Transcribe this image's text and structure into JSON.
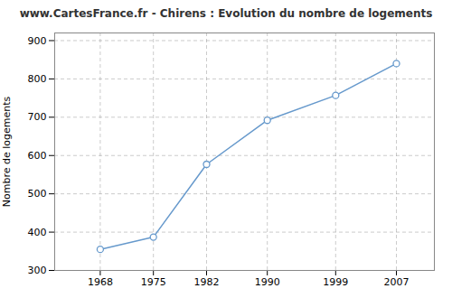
{
  "chart_data": {
    "type": "line",
    "title": "www.CartesFrance.fr - Chirens : Evolution du nombre de logements",
    "ylabel": "Nombre de logements",
    "x": [
      1968,
      1975,
      1982,
      1990,
      1999,
      2007
    ],
    "values": [
      355,
      387,
      577,
      692,
      757,
      840
    ],
    "xlim": [
      1962,
      2012
    ],
    "xticks": [
      1968,
      1975,
      1982,
      1990,
      1999,
      2007
    ],
    "ylim": [
      300,
      920
    ],
    "yticks": [
      300,
      400,
      500,
      600,
      700,
      800,
      900
    ],
    "color": "#6699cc",
    "marker": "circle",
    "grid": true
  }
}
